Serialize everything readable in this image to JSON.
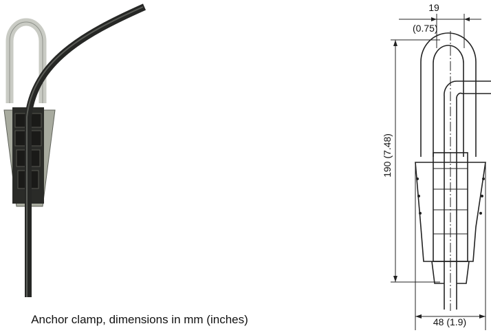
{
  "caption": "Anchor clamp, dimensions in mm (inches)",
  "dimensions": {
    "width_top": "19",
    "width_top_inches": "(0.75)",
    "height": "190 (7.48)",
    "width_bottom": "48 (1.9)"
  }
}
